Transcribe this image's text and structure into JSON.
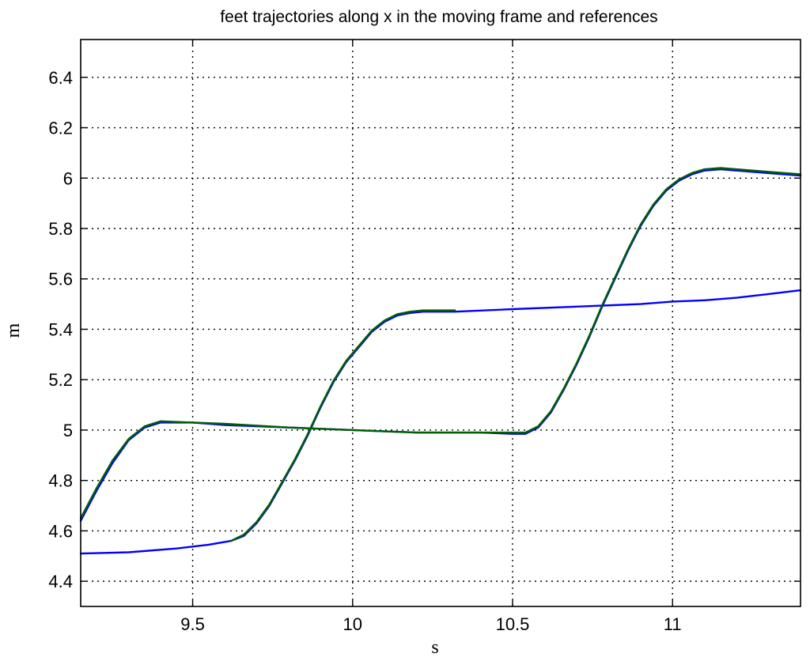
{
  "chart_data": {
    "type": "line",
    "title": "feet trajectories along x in the moving frame and references",
    "xlabel": "s",
    "ylabel": "m",
    "xlim": [
      9.15,
      11.4
    ],
    "ylim": [
      4.3,
      6.55
    ],
    "xticks": [
      9.5,
      10,
      10.5,
      11
    ],
    "xtick_labels": [
      "9.5",
      "10",
      "10.5",
      "11"
    ],
    "yticks": [
      4.4,
      4.6,
      4.8,
      5.0,
      5.2,
      5.4,
      5.6,
      5.8,
      6.0,
      6.2,
      6.4
    ],
    "ytick_labels": [
      "4.4",
      "4.6",
      "4.8",
      "5",
      "5.2",
      "5.4",
      "5.6",
      "5.8",
      "6",
      "6.2",
      "6.4"
    ],
    "grid": true,
    "series": [
      {
        "color": "#0000ff",
        "x": [
          9.15,
          9.3,
          9.45,
          9.55,
          9.62,
          9.66,
          9.7,
          9.74,
          9.78,
          9.82,
          9.86,
          9.9,
          9.94,
          9.98,
          10.02,
          10.06,
          10.1,
          10.14,
          10.18,
          10.22,
          10.27,
          10.32,
          10.5,
          10.7,
          10.9,
          11.0,
          11.1,
          11.2,
          11.3,
          11.4
        ],
        "y": [
          4.51,
          4.515,
          4.53,
          4.545,
          4.56,
          4.58,
          4.63,
          4.7,
          4.79,
          4.88,
          4.98,
          5.09,
          5.19,
          5.27,
          5.33,
          5.39,
          5.43,
          5.455,
          5.465,
          5.47,
          5.47,
          5.47,
          5.48,
          5.49,
          5.5,
          5.51,
          5.515,
          5.525,
          5.54,
          5.555
        ]
      },
      {
        "color": "#0000ff",
        "x": [
          9.15,
          9.2,
          9.25,
          9.3,
          9.35,
          9.4,
          9.5,
          9.6,
          9.8,
          10.0,
          10.2,
          10.4,
          10.5,
          10.54,
          10.58,
          10.62,
          10.66,
          10.7,
          10.74,
          10.78,
          10.82,
          10.86,
          10.9,
          10.94,
          10.98,
          11.02,
          11.06,
          11.1,
          11.15,
          11.2,
          11.3,
          11.4
        ],
        "y": [
          4.64,
          4.76,
          4.87,
          4.96,
          5.01,
          5.03,
          5.03,
          5.02,
          5.01,
          5.0,
          4.99,
          4.99,
          4.985,
          4.985,
          5.01,
          5.07,
          5.16,
          5.26,
          5.37,
          5.49,
          5.6,
          5.71,
          5.81,
          5.89,
          5.95,
          5.99,
          6.015,
          6.03,
          6.035,
          6.03,
          6.02,
          6.01
        ]
      },
      {
        "color": "#006000",
        "x": [
          9.15,
          9.2,
          9.25,
          9.3,
          9.35,
          9.4,
          9.5,
          9.6,
          9.8,
          10.0,
          10.2,
          10.4,
          10.5,
          10.54,
          10.58,
          10.62,
          10.66,
          10.7,
          10.74,
          10.78,
          10.82,
          10.86,
          10.9,
          10.94,
          10.98,
          11.02,
          11.06,
          11.1,
          11.15,
          11.2,
          11.3,
          11.4
        ],
        "y": [
          4.65,
          4.77,
          4.88,
          4.965,
          5.015,
          5.035,
          5.03,
          5.025,
          5.01,
          5.0,
          4.99,
          4.99,
          4.99,
          4.99,
          5.015,
          5.075,
          5.165,
          5.265,
          5.375,
          5.495,
          5.605,
          5.715,
          5.815,
          5.895,
          5.955,
          5.995,
          6.02,
          6.035,
          6.04,
          6.035,
          6.025,
          6.015
        ]
      },
      {
        "color": "#006000",
        "x": [
          9.62,
          9.66,
          9.7,
          9.74,
          9.78,
          9.82,
          9.86,
          9.9,
          9.94,
          9.98,
          10.02,
          10.06,
          10.1,
          10.14,
          10.18,
          10.22,
          10.27,
          10.32
        ],
        "y": [
          4.56,
          4.585,
          4.635,
          4.705,
          4.795,
          4.885,
          4.985,
          5.095,
          5.195,
          5.275,
          5.335,
          5.395,
          5.435,
          5.46,
          5.47,
          5.475,
          5.475,
          5.475
        ]
      }
    ]
  }
}
